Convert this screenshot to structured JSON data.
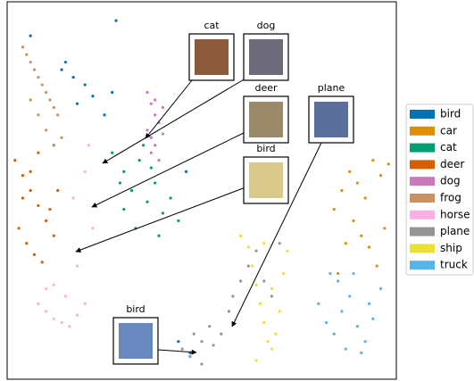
{
  "chart_data": {
    "type": "scatter",
    "xlim": [
      0,
      100
    ],
    "ylim": [
      0,
      100
    ],
    "legend": "outside right",
    "annotations": [
      "cat",
      "dog",
      "deer",
      "bird",
      "plane",
      "bird"
    ],
    "series": [
      {
        "name": "bird",
        "color": "#0173b2",
        "x": [
          6,
          15,
          17,
          20,
          22,
          14,
          18,
          25,
          27,
          44,
          47,
          28,
          12,
          46
        ],
        "y": [
          91,
          84,
          80,
          78,
          75,
          82,
          73,
          70,
          76,
          10,
          7,
          95,
          62,
          55
        ]
      },
      {
        "name": "car",
        "color": "#de8f05",
        "x": [
          84,
          86,
          88,
          90,
          92,
          94,
          96,
          97,
          89,
          91,
          93,
          95,
          87,
          98,
          85
        ],
        "y": [
          45,
          50,
          55,
          52,
          48,
          58,
          54,
          40,
          42,
          38,
          35,
          30,
          36,
          57,
          28
        ]
      },
      {
        "name": "cat",
        "color": "#029e73",
        "x": [
          27,
          30,
          32,
          34,
          36,
          38,
          40,
          42,
          44,
          30,
          35,
          39,
          33,
          37,
          29
        ],
        "y": [
          60,
          55,
          50,
          58,
          47,
          52,
          44,
          48,
          42,
          45,
          62,
          38,
          40,
          56,
          52
        ]
      },
      {
        "name": "deer",
        "color": "#d55e00",
        "x": [
          2,
          4,
          6,
          8,
          10,
          12,
          3,
          5,
          7,
          9,
          11,
          13,
          4,
          6,
          8
        ],
        "y": [
          58,
          54,
          50,
          46,
          42,
          38,
          40,
          36,
          33,
          31,
          45,
          50,
          48,
          55,
          60
        ]
      },
      {
        "name": "dog",
        "color": "#cc78bc",
        "x": [
          36,
          37,
          38,
          39,
          40,
          38,
          37,
          39,
          36,
          40,
          38,
          37
        ],
        "y": [
          76,
          73,
          70,
          68,
          65,
          62,
          60,
          58,
          66,
          72,
          74,
          64
        ]
      },
      {
        "name": "frog",
        "color": "#ca9161",
        "x": [
          4,
          5,
          6,
          7,
          8,
          9,
          10,
          11,
          12,
          13,
          6,
          8,
          10,
          12,
          14
        ],
        "y": [
          88,
          86,
          84,
          82,
          80,
          78,
          76,
          74,
          72,
          70,
          74,
          70,
          66,
          62,
          64
        ]
      },
      {
        "name": "horse",
        "color": "#fbafe4",
        "x": [
          8,
          10,
          12,
          14,
          16,
          18,
          20,
          12,
          15,
          18,
          22,
          20,
          17,
          21,
          10
        ],
        "y": [
          20,
          18,
          16,
          15,
          14,
          17,
          20,
          25,
          22,
          30,
          40,
          55,
          48,
          62,
          24
        ]
      },
      {
        "name": "plane",
        "color": "#949494",
        "x": [
          45,
          47,
          48,
          50,
          52,
          53,
          55,
          57,
          58,
          60,
          62,
          64,
          66,
          68,
          70,
          50
        ],
        "y": [
          8,
          6,
          12,
          10,
          14,
          9,
          12,
          18,
          22,
          26,
          30,
          34,
          26,
          22,
          36,
          4
        ]
      },
      {
        "name": "ship",
        "color": "#ece133",
        "x": [
          60,
          62,
          63,
          64,
          65,
          66,
          67,
          68,
          69,
          70,
          71,
          72,
          64,
          66,
          68
        ],
        "y": [
          38,
          35,
          30,
          25,
          20,
          15,
          10,
          8,
          12,
          18,
          28,
          34,
          5,
          36,
          24
        ]
      },
      {
        "name": "truck",
        "color": "#56b4e9",
        "x": [
          80,
          82,
          84,
          86,
          88,
          90,
          92,
          94,
          96,
          85,
          89,
          93,
          87,
          91,
          83
        ],
        "y": [
          20,
          15,
          12,
          18,
          22,
          14,
          10,
          16,
          24,
          26,
          28,
          20,
          8,
          7,
          28
        ]
      }
    ]
  }
}
